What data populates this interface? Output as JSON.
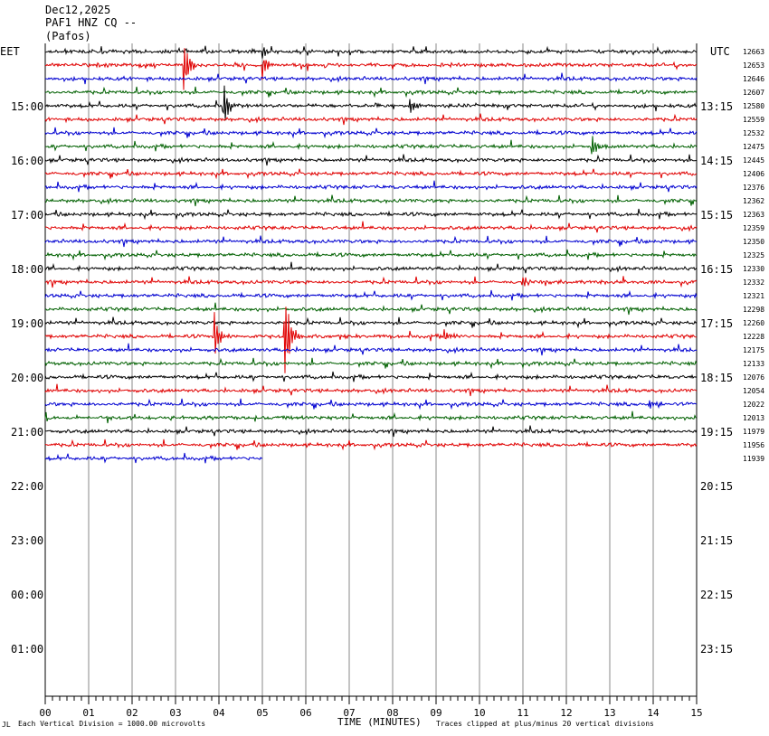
{
  "header": {
    "date": "Dec12,2025",
    "station": "PAF1 HNZ CQ --",
    "location": "(Pafos)"
  },
  "left_timezone": "EET",
  "right_timezone": "UTC",
  "footer": {
    "x_title": "TIME (MINUTES)",
    "scale_note": "Each Vertical Division = 1000.00 microvolts",
    "clip_note": "Traces clipped at plus/minus 20 vertical divisions",
    "corner_mark": "JL"
  },
  "chart_data": {
    "type": "line",
    "title": "PAF1 HNZ CQ --",
    "xlabel": "TIME (MINUTES)",
    "ylabel": "",
    "xlim": [
      0,
      15
    ],
    "x_ticks": [
      "00",
      "01",
      "02",
      "03",
      "04",
      "05",
      "06",
      "07",
      "08",
      "09",
      "10",
      "11",
      "12",
      "13",
      "14",
      "15"
    ],
    "left_hour_labels": [
      "15:00",
      "16:00",
      "17:00",
      "18:00",
      "19:00",
      "20:00",
      "21:00",
      "22:00",
      "23:00",
      "00:00",
      "01:00"
    ],
    "right_hour_labels": [
      "13:15",
      "14:15",
      "15:15",
      "16:15",
      "17:15",
      "18:15",
      "19:15",
      "20:15",
      "21:15",
      "22:15",
      "23:15"
    ],
    "trace_colors": [
      "#000000",
      "#e00000",
      "#0000d0",
      "#006000"
    ],
    "trace_counts": [
      "12663",
      "12653",
      "12646",
      "12607",
      "12580",
      "12559",
      "12532",
      "12475",
      "12445",
      "12406",
      "12376",
      "12362",
      "12363",
      "12359",
      "12350",
      "12325",
      "12330",
      "12332",
      "12321",
      "12298",
      "12260",
      "12228",
      "12175",
      "12133",
      "12076",
      "12054",
      "12022",
      "12013",
      "11979",
      "11956",
      "11939"
    ],
    "last_trace_end_minute": 5.0,
    "events": [
      {
        "trace": 0,
        "minute": 5.0,
        "amplitude": 8
      },
      {
        "trace": 1,
        "minute": 3.2,
        "amplitude": 30
      },
      {
        "trace": 1,
        "minute": 5.0,
        "amplitude": 14
      },
      {
        "trace": 4,
        "minute": 4.1,
        "amplitude": 22
      },
      {
        "trace": 4,
        "minute": 8.4,
        "amplitude": 9
      },
      {
        "trace": 7,
        "minute": 12.6,
        "amplitude": 12
      },
      {
        "trace": 17,
        "minute": 11.0,
        "amplitude": 8
      },
      {
        "trace": 21,
        "minute": 3.9,
        "amplitude": 26
      },
      {
        "trace": 21,
        "minute": 5.5,
        "amplitude": 58
      },
      {
        "trace": 21,
        "minute": 9.2,
        "amplitude": 6
      },
      {
        "trace": 26,
        "minute": 13.9,
        "amplitude": 6
      }
    ]
  }
}
